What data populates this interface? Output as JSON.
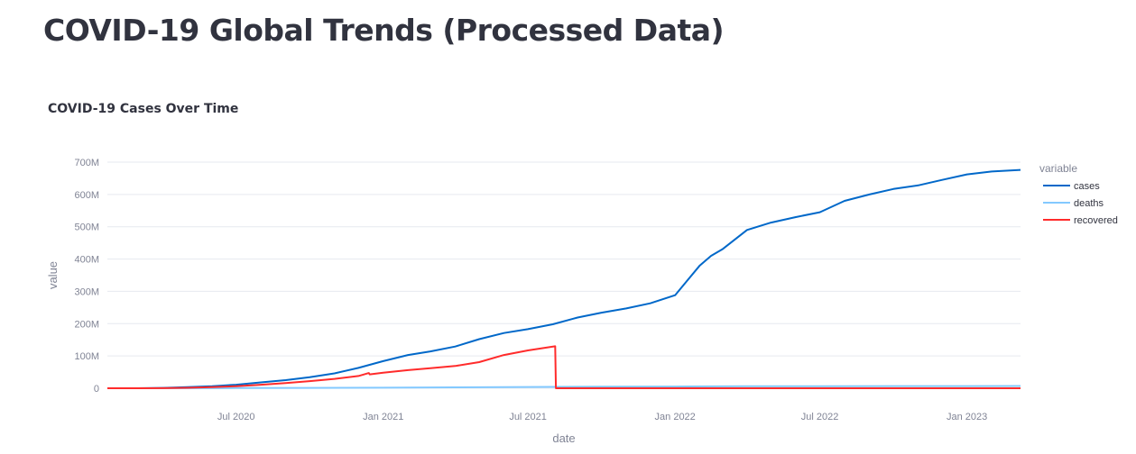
{
  "page": {
    "title": "COVID-19 Global Trends (Processed Data)"
  },
  "chart_data": {
    "type": "line",
    "title": "COVID-19 Cases Over Time",
    "xlabel": "date",
    "ylabel": "value",
    "xlim": [
      "2020-01-22",
      "2023-03-09"
    ],
    "ylim": [
      0,
      700000000
    ],
    "x_ticks": [
      {
        "date": "2020-07-01",
        "label": "Jul 2020"
      },
      {
        "date": "2021-01-01",
        "label": "Jan 2021"
      },
      {
        "date": "2021-07-01",
        "label": "Jul 2021"
      },
      {
        "date": "2022-01-01",
        "label": "Jan 2022"
      },
      {
        "date": "2022-07-01",
        "label": "Jul 2022"
      },
      {
        "date": "2023-01-01",
        "label": "Jan 2023"
      }
    ],
    "y_ticks": [
      {
        "value": 0,
        "label": "0"
      },
      {
        "value": 100000000,
        "label": "100M"
      },
      {
        "value": 200000000,
        "label": "200M"
      },
      {
        "value": 300000000,
        "label": "300M"
      },
      {
        "value": 400000000,
        "label": "400M"
      },
      {
        "value": 500000000,
        "label": "500M"
      },
      {
        "value": 600000000,
        "label": "600M"
      },
      {
        "value": 700000000,
        "label": "700M"
      }
    ],
    "grid": true,
    "legend": {
      "title": "variable",
      "placement": "right"
    },
    "series": [
      {
        "name": "cases",
        "color": "#0068c9",
        "points": [
          [
            "2020-01-22",
            0
          ],
          [
            "2020-03-01",
            100000
          ],
          [
            "2020-04-01",
            1000000
          ],
          [
            "2020-05-01",
            3500000
          ],
          [
            "2020-06-01",
            6500000
          ],
          [
            "2020-07-01",
            11000000
          ],
          [
            "2020-08-01",
            18000000
          ],
          [
            "2020-09-01",
            25000000
          ],
          [
            "2020-10-01",
            34000000
          ],
          [
            "2020-11-01",
            46000000
          ],
          [
            "2020-12-01",
            63000000
          ],
          [
            "2021-01-01",
            84000000
          ],
          [
            "2021-02-01",
            103000000
          ],
          [
            "2021-03-01",
            114000000
          ],
          [
            "2021-04-01",
            129000000
          ],
          [
            "2021-05-01",
            152000000
          ],
          [
            "2021-06-01",
            171000000
          ],
          [
            "2021-07-01",
            183000000
          ],
          [
            "2021-08-01",
            198000000
          ],
          [
            "2021-09-01",
            219000000
          ],
          [
            "2021-10-01",
            234000000
          ],
          [
            "2021-11-01",
            247000000
          ],
          [
            "2021-12-01",
            263000000
          ],
          [
            "2022-01-01",
            288000000
          ],
          [
            "2022-01-15",
            330000000
          ],
          [
            "2022-02-01",
            380000000
          ],
          [
            "2022-02-15",
            410000000
          ],
          [
            "2022-03-01",
            430000000
          ],
          [
            "2022-04-01",
            490000000
          ],
          [
            "2022-05-01",
            513000000
          ],
          [
            "2022-06-01",
            530000000
          ],
          [
            "2022-07-01",
            545000000
          ],
          [
            "2022-08-01",
            580000000
          ],
          [
            "2022-09-01",
            600000000
          ],
          [
            "2022-10-01",
            617000000
          ],
          [
            "2022-11-01",
            628000000
          ],
          [
            "2022-12-01",
            645000000
          ],
          [
            "2023-01-01",
            662000000
          ],
          [
            "2023-02-01",
            671000000
          ],
          [
            "2023-03-09",
            676000000
          ]
        ]
      },
      {
        "name": "deaths",
        "color": "#83c9ff",
        "points": [
          [
            "2020-01-22",
            0
          ],
          [
            "2020-04-01",
            50000
          ],
          [
            "2020-07-01",
            500000
          ],
          [
            "2020-10-01",
            1000000
          ],
          [
            "2021-01-01",
            1800000
          ],
          [
            "2021-04-01",
            2800000
          ],
          [
            "2021-07-01",
            3900000
          ],
          [
            "2021-10-01",
            4800000
          ],
          [
            "2022-01-01",
            5400000
          ],
          [
            "2022-04-01",
            6200000
          ],
          [
            "2022-07-01",
            6400000
          ],
          [
            "2022-10-01",
            6600000
          ],
          [
            "2023-01-01",
            6700000
          ],
          [
            "2023-03-09",
            6880000
          ]
        ]
      },
      {
        "name": "recovered",
        "color": "#ff2b2b",
        "points": [
          [
            "2020-01-22",
            0
          ],
          [
            "2020-03-01",
            50000
          ],
          [
            "2020-04-01",
            300000
          ],
          [
            "2020-05-01",
            1500000
          ],
          [
            "2020-06-01",
            3500000
          ],
          [
            "2020-07-01",
            6500000
          ],
          [
            "2020-08-01",
            11000000
          ],
          [
            "2020-09-01",
            16000000
          ],
          [
            "2020-10-01",
            22000000
          ],
          [
            "2020-11-01",
            29000000
          ],
          [
            "2020-12-01",
            38000000
          ],
          [
            "2020-12-14",
            47000000
          ],
          [
            "2020-12-15",
            43000000
          ],
          [
            "2021-01-01",
            48000000
          ],
          [
            "2021-02-01",
            56000000
          ],
          [
            "2021-03-01",
            62000000
          ],
          [
            "2021-04-01",
            69000000
          ],
          [
            "2021-05-01",
            81000000
          ],
          [
            "2021-06-01",
            103000000
          ],
          [
            "2021-07-01",
            117000000
          ],
          [
            "2021-08-04",
            130000000
          ],
          [
            "2021-08-05",
            0
          ],
          [
            "2022-01-01",
            0
          ],
          [
            "2023-03-09",
            0
          ]
        ]
      }
    ]
  }
}
